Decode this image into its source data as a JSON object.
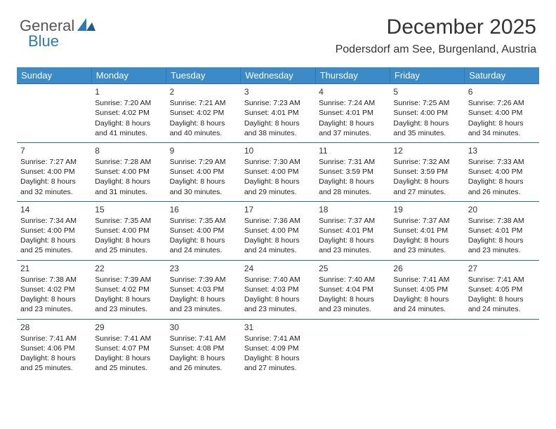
{
  "logo": {
    "text1": "General",
    "text2": "Blue"
  },
  "title": "December 2025",
  "location": "Podersdorf am See, Burgenland, Austria",
  "colors": {
    "header_bg": "#3b8bc9",
    "header_text": "#ffffff",
    "border": "#2a6ca3",
    "logo_accent": "#2a7ab8",
    "text": "#222222",
    "background": "#ffffff"
  },
  "weekdays": [
    "Sunday",
    "Monday",
    "Tuesday",
    "Wednesday",
    "Thursday",
    "Friday",
    "Saturday"
  ],
  "typography": {
    "title_size": 30,
    "location_size": 16,
    "weekday_size": 13,
    "cell_size": 10.5
  },
  "cells": [
    [
      null,
      {
        "day": "1",
        "sunrise": "7:20 AM",
        "sunset": "4:02 PM",
        "daylight": "Daylight: 8 hours and 41 minutes."
      },
      {
        "day": "2",
        "sunrise": "7:21 AM",
        "sunset": "4:02 PM",
        "daylight": "Daylight: 8 hours and 40 minutes."
      },
      {
        "day": "3",
        "sunrise": "7:23 AM",
        "sunset": "4:01 PM",
        "daylight": "Daylight: 8 hours and 38 minutes."
      },
      {
        "day": "4",
        "sunrise": "7:24 AM",
        "sunset": "4:01 PM",
        "daylight": "Daylight: 8 hours and 37 minutes."
      },
      {
        "day": "5",
        "sunrise": "7:25 AM",
        "sunset": "4:00 PM",
        "daylight": "Daylight: 8 hours and 35 minutes."
      },
      {
        "day": "6",
        "sunrise": "7:26 AM",
        "sunset": "4:00 PM",
        "daylight": "Daylight: 8 hours and 34 minutes."
      }
    ],
    [
      {
        "day": "7",
        "sunrise": "7:27 AM",
        "sunset": "4:00 PM",
        "daylight": "Daylight: 8 hours and 32 minutes."
      },
      {
        "day": "8",
        "sunrise": "7:28 AM",
        "sunset": "4:00 PM",
        "daylight": "Daylight: 8 hours and 31 minutes."
      },
      {
        "day": "9",
        "sunrise": "7:29 AM",
        "sunset": "4:00 PM",
        "daylight": "Daylight: 8 hours and 30 minutes."
      },
      {
        "day": "10",
        "sunrise": "7:30 AM",
        "sunset": "4:00 PM",
        "daylight": "Daylight: 8 hours and 29 minutes."
      },
      {
        "day": "11",
        "sunrise": "7:31 AM",
        "sunset": "3:59 PM",
        "daylight": "Daylight: 8 hours and 28 minutes."
      },
      {
        "day": "12",
        "sunrise": "7:32 AM",
        "sunset": "3:59 PM",
        "daylight": "Daylight: 8 hours and 27 minutes."
      },
      {
        "day": "13",
        "sunrise": "7:33 AM",
        "sunset": "4:00 PM",
        "daylight": "Daylight: 8 hours and 26 minutes."
      }
    ],
    [
      {
        "day": "14",
        "sunrise": "7:34 AM",
        "sunset": "4:00 PM",
        "daylight": "Daylight: 8 hours and 25 minutes."
      },
      {
        "day": "15",
        "sunrise": "7:35 AM",
        "sunset": "4:00 PM",
        "daylight": "Daylight: 8 hours and 25 minutes."
      },
      {
        "day": "16",
        "sunrise": "7:35 AM",
        "sunset": "4:00 PM",
        "daylight": "Daylight: 8 hours and 24 minutes."
      },
      {
        "day": "17",
        "sunrise": "7:36 AM",
        "sunset": "4:00 PM",
        "daylight": "Daylight: 8 hours and 24 minutes."
      },
      {
        "day": "18",
        "sunrise": "7:37 AM",
        "sunset": "4:01 PM",
        "daylight": "Daylight: 8 hours and 23 minutes."
      },
      {
        "day": "19",
        "sunrise": "7:37 AM",
        "sunset": "4:01 PM",
        "daylight": "Daylight: 8 hours and 23 minutes."
      },
      {
        "day": "20",
        "sunrise": "7:38 AM",
        "sunset": "4:01 PM",
        "daylight": "Daylight: 8 hours and 23 minutes."
      }
    ],
    [
      {
        "day": "21",
        "sunrise": "7:38 AM",
        "sunset": "4:02 PM",
        "daylight": "Daylight: 8 hours and 23 minutes."
      },
      {
        "day": "22",
        "sunrise": "7:39 AM",
        "sunset": "4:02 PM",
        "daylight": "Daylight: 8 hours and 23 minutes."
      },
      {
        "day": "23",
        "sunrise": "7:39 AM",
        "sunset": "4:03 PM",
        "daylight": "Daylight: 8 hours and 23 minutes."
      },
      {
        "day": "24",
        "sunrise": "7:40 AM",
        "sunset": "4:03 PM",
        "daylight": "Daylight: 8 hours and 23 minutes."
      },
      {
        "day": "25",
        "sunrise": "7:40 AM",
        "sunset": "4:04 PM",
        "daylight": "Daylight: 8 hours and 23 minutes."
      },
      {
        "day": "26",
        "sunrise": "7:41 AM",
        "sunset": "4:05 PM",
        "daylight": "Daylight: 8 hours and 24 minutes."
      },
      {
        "day": "27",
        "sunrise": "7:41 AM",
        "sunset": "4:05 PM",
        "daylight": "Daylight: 8 hours and 24 minutes."
      }
    ],
    [
      {
        "day": "28",
        "sunrise": "7:41 AM",
        "sunset": "4:06 PM",
        "daylight": "Daylight: 8 hours and 25 minutes."
      },
      {
        "day": "29",
        "sunrise": "7:41 AM",
        "sunset": "4:07 PM",
        "daylight": "Daylight: 8 hours and 25 minutes."
      },
      {
        "day": "30",
        "sunrise": "7:41 AM",
        "sunset": "4:08 PM",
        "daylight": "Daylight: 8 hours and 26 minutes."
      },
      {
        "day": "31",
        "sunrise": "7:41 AM",
        "sunset": "4:09 PM",
        "daylight": "Daylight: 8 hours and 27 minutes."
      },
      null,
      null,
      null
    ]
  ],
  "labels": {
    "sunrise": "Sunrise:",
    "sunset": "Sunset:"
  }
}
